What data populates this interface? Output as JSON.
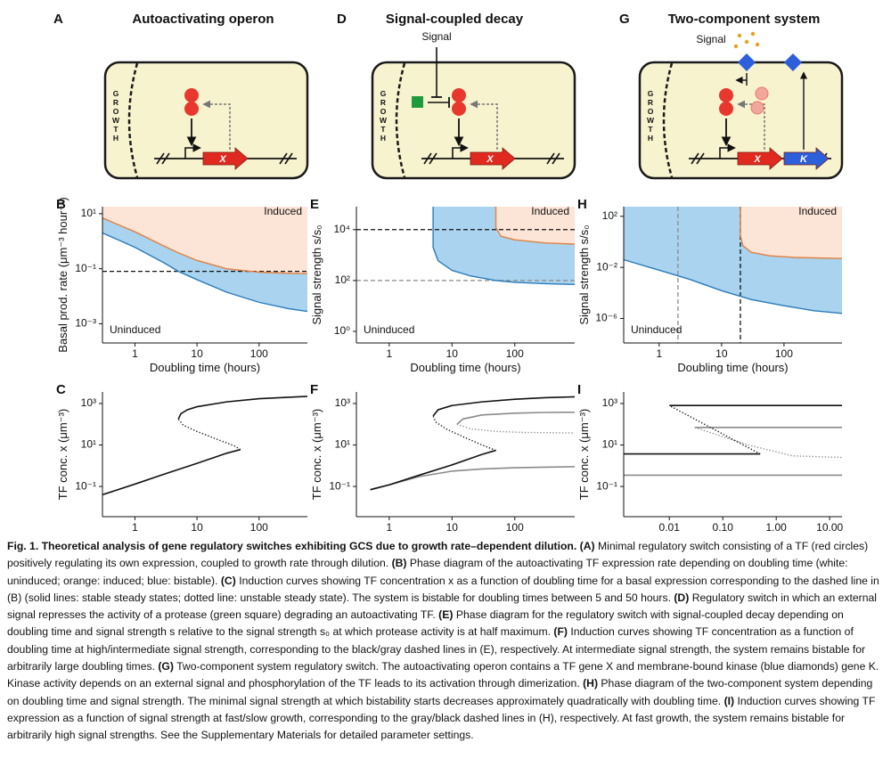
{
  "diagrams": [
    {
      "panel": "A",
      "title": "Autoactivating operon",
      "growth": "GROWTH",
      "genes": [
        "X"
      ]
    },
    {
      "panel": "D",
      "title": "Signal-coupled decay",
      "growth": "GROWTH",
      "signal": "Signal",
      "genes": [
        "X"
      ]
    },
    {
      "panel": "G",
      "title": "Two-component system",
      "growth": "GROWTH",
      "signal": "Signal",
      "genes": [
        "X",
        "K"
      ]
    }
  ],
  "chart_data": [
    {
      "panel": "B",
      "type": "line",
      "xscale": "log",
      "yscale": "log",
      "xlabel": "Doubling time (hours)",
      "ylabel": "Basal prod. rate (μm⁻³ hour⁻¹)",
      "xlim": [
        0.3,
        600
      ],
      "ylim": [
        0.0002,
        18
      ],
      "xticks": [
        1,
        10,
        100
      ],
      "yticks": [
        {
          "value": 10,
          "label": "10¹"
        },
        {
          "value": 0.1,
          "label": "10⁻¹"
        },
        {
          "value": 0.001,
          "label": "10⁻³"
        }
      ],
      "region_labels": [
        "Induced",
        "Uninduced"
      ],
      "hlines": [
        {
          "value": 0.08,
          "color": "#111111"
        }
      ],
      "series": [
        {
          "color": "#2b7bba",
          "fill": "#a9d3ef",
          "style": "solid",
          "x": [
            0.3,
            1,
            3,
            5,
            10,
            30,
            100,
            300,
            600
          ],
          "values": [
            2,
            0.6,
            0.16,
            0.08,
            0.04,
            0.014,
            0.006,
            0.0035,
            0.0028
          ]
        },
        {
          "color": "#e2803f",
          "fill": "#fce4d6",
          "style": "solid",
          "x": [
            0.3,
            1,
            3,
            5,
            10,
            30,
            100,
            300,
            600
          ],
          "values": [
            7,
            2.2,
            0.65,
            0.38,
            0.2,
            0.1,
            0.075,
            0.068,
            0.066
          ]
        }
      ]
    },
    {
      "panel": "C",
      "type": "line",
      "xscale": "log",
      "yscale": "log",
      "xlabel": "Doubling time (hours)",
      "ylabel": "TF conc. x (μm⁻³)",
      "xlim": [
        0.3,
        600
      ],
      "ylim": [
        0.0035,
        3600
      ],
      "xticks": [
        1,
        10,
        100
      ],
      "yticks": [
        {
          "value": 1000,
          "label": "10³"
        },
        {
          "value": 10,
          "label": "10¹"
        },
        {
          "value": 0.1,
          "label": "10⁻¹"
        }
      ],
      "series": [
        {
          "color": "#111111",
          "style": "solid",
          "x": [
            0.3,
            1,
            3,
            10,
            30,
            50
          ],
          "values": [
            0.04,
            0.13,
            0.4,
            1.3,
            4,
            6
          ]
        },
        {
          "color": "#111111",
          "style": "dotted",
          "x": [
            50,
            40,
            20,
            10,
            6,
            5
          ],
          "values": [
            6,
            9,
            20,
            45,
            90,
            180
          ]
        },
        {
          "color": "#111111",
          "style": "solid",
          "x": [
            5,
            5.5,
            7,
            10,
            30,
            100,
            300,
            600
          ],
          "values": [
            180,
            320,
            500,
            700,
            1200,
            1700,
            2000,
            2200
          ]
        }
      ]
    },
    {
      "panel": "E",
      "type": "line",
      "xscale": "log",
      "yscale": "log",
      "xlabel": "Doubling time (hours)",
      "ylabel": "Signal strength s/s₀",
      "xlim": [
        0.3,
        900
      ],
      "ylim": [
        0.35,
        80000
      ],
      "xticks": [
        1,
        10,
        100
      ],
      "yticks": [
        {
          "value": 10000,
          "label": "10⁴"
        },
        {
          "value": 100,
          "label": "10²"
        },
        {
          "value": 1,
          "label": "10⁰"
        }
      ],
      "region_labels": [
        "Induced",
        "Uninduced"
      ],
      "hlines": [
        {
          "value": 10000,
          "color": "#111111"
        },
        {
          "value": 100,
          "color": "#8a8a8a"
        }
      ],
      "series": [
        {
          "color": "#2b7bba",
          "fill": "#a9d3ef",
          "style": "solid",
          "x": [
            5,
            5,
            6,
            10,
            20,
            50,
            100,
            300,
            900
          ],
          "values": [
            80000,
            2000,
            600,
            250,
            150,
            100,
            85,
            75,
            70
          ]
        },
        {
          "color": "#e2803f",
          "fill": "#fce4d6",
          "style": "solid",
          "x": [
            50,
            50,
            60,
            100,
            300,
            900
          ],
          "values": [
            80000,
            12000,
            5500,
            4000,
            3000,
            2700
          ]
        }
      ]
    },
    {
      "panel": "F",
      "type": "line",
      "xscale": "log",
      "yscale": "log",
      "xlabel": "Doubling time (hours)",
      "ylabel": "TF conc. x (μm⁻³)",
      "xlim": [
        0.3,
        900
      ],
      "ylim": [
        0.0035,
        3600
      ],
      "xticks": [
        1,
        10,
        100
      ],
      "yticks": [
        {
          "value": 1000,
          "label": "10³"
        },
        {
          "value": 10,
          "label": "10¹"
        },
        {
          "value": 0.1,
          "label": "10⁻¹"
        }
      ],
      "series": [
        {
          "color": "#8a8a8a",
          "style": "solid",
          "x": [
            0.5,
            1,
            3,
            10,
            30,
            100,
            300,
            900
          ],
          "values": [
            0.07,
            0.12,
            0.3,
            0.55,
            0.7,
            0.8,
            0.85,
            0.9
          ]
        },
        {
          "color": "#8a8a8a",
          "style": "dotted",
          "x": [
            12,
            20,
            50,
            150,
            900
          ],
          "values": [
            100,
            60,
            45,
            40,
            38
          ]
        },
        {
          "color": "#8a8a8a",
          "style": "solid",
          "x": [
            12,
            15,
            30,
            100,
            300,
            900
          ],
          "values": [
            100,
            180,
            280,
            340,
            370,
            380
          ]
        },
        {
          "color": "#111111",
          "style": "solid",
          "x": [
            0.5,
            1,
            3,
            10,
            30,
            50
          ],
          "values": [
            0.07,
            0.12,
            0.35,
            1.1,
            3.5,
            5.5
          ]
        },
        {
          "color": "#111111",
          "style": "dotted",
          "x": [
            50,
            30,
            15,
            8,
            5.5,
            5
          ],
          "values": [
            5.5,
            10,
            25,
            60,
            130,
            250
          ]
        },
        {
          "color": "#111111",
          "style": "solid",
          "x": [
            5,
            6,
            10,
            30,
            100,
            300,
            900
          ],
          "values": [
            250,
            500,
            800,
            1200,
            1600,
            1900,
            2100
          ]
        }
      ]
    },
    {
      "panel": "H",
      "type": "line",
      "xscale": "log",
      "yscale": "log",
      "xlabel": "Doubling time (hours)",
      "ylabel": "Signal strength s/s₀",
      "xlim": [
        0.27,
        850
      ],
      "ylim": [
        1.2e-08,
        570
      ],
      "xticks": [
        1,
        10,
        100
      ],
      "yticks": [
        {
          "value": 100,
          "label": "10²"
        },
        {
          "value": 0.01,
          "label": "10⁻²"
        },
        {
          "value": 1e-06,
          "label": "10⁻⁶"
        }
      ],
      "region_labels": [
        "Induced",
        "Uninduced"
      ],
      "vlines": [
        {
          "value": 2,
          "color": "#8a8a8a"
        },
        {
          "value": 20,
          "color": "#111111"
        }
      ],
      "series": [
        {
          "color": "#2b7bba",
          "fill": "#a9d3ef",
          "style": "solid",
          "x": [
            0.27,
            1,
            3,
            10,
            30,
            100,
            300,
            850
          ],
          "values": [
            0.04,
            0.006,
            0.0012,
            0.00015,
            3e-05,
            1e-05,
            4e-06,
            2.5e-06
          ]
        },
        {
          "color": "#e2803f",
          "fill": "#fce4d6",
          "style": "solid",
          "x": [
            20,
            20,
            22,
            30,
            60,
            150,
            850
          ],
          "values": [
            570,
            3,
            0.5,
            0.15,
            0.08,
            0.06,
            0.05
          ]
        }
      ]
    },
    {
      "panel": "I",
      "type": "line",
      "xscale": "log",
      "yscale": "log",
      "xlabel": "Signal strength s/s₀",
      "ylabel": "TF conc. x (μm⁻³)",
      "xlim": [
        0.0014,
        17
      ],
      "ylim": [
        0.0035,
        3600
      ],
      "xticks": [
        0.01,
        {
          "value": 0.1,
          "label": "0.10"
        },
        {
          "value": 1,
          "label": "1.00"
        },
        {
          "value": 10,
          "label": "10.00"
        }
      ],
      "yticks": [
        {
          "value": 1000,
          "label": "10³"
        },
        {
          "value": 10,
          "label": "10¹"
        },
        {
          "value": 0.1,
          "label": "10⁻¹"
        }
      ],
      "series": [
        {
          "color": "#8a8a8a",
          "style": "solid",
          "x": [
            0.0014,
            17
          ],
          "values": [
            0.35,
            0.35
          ]
        },
        {
          "color": "#8a8a8a",
          "style": "solid",
          "x": [
            0.03,
            17
          ],
          "values": [
            70,
            70
          ]
        },
        {
          "color": "#8a8a8a",
          "style": "dotted",
          "x": [
            0.03,
            0.3,
            2,
            17
          ],
          "values": [
            70,
            10,
            3,
            2.5
          ]
        },
        {
          "color": "#111111",
          "style": "solid",
          "x": [
            0.01,
            17
          ],
          "values": [
            800,
            800
          ]
        },
        {
          "color": "#111111",
          "style": "solid",
          "x": [
            0.0014,
            0.5
          ],
          "values": [
            3.7,
            3.7
          ]
        },
        {
          "color": "#111111",
          "style": "dotted",
          "x": [
            0.5,
            0.07,
            0.01
          ],
          "values": [
            3.7,
            55,
            800
          ]
        }
      ]
    }
  ],
  "caption": {
    "title": "Fig. 1. Theoretical analysis of gene regulatory switches exhibiting GCS due to growth rate–dependent dilution.",
    "parts": [
      {
        "label": "(A)",
        "text": "Minimal regulatory switch consisting of a TF (red circles) positively regulating its own expression, coupled to growth rate through dilution."
      },
      {
        "label": "(B)",
        "text": "Phase diagram of the autoactivating TF expression rate depending on doubling time (white: uninduced; orange: induced; blue: bistable)."
      },
      {
        "label": "(C)",
        "text": "Induction curves showing TF concentration x as a function of doubling time for a basal expression corresponding to the dashed line in (B) (solid lines: stable steady states; dotted line: unstable steady state). The system is bistable for doubling times between 5 and 50 hours."
      },
      {
        "label": "(D)",
        "text": "Regulatory switch in which an external signal represses the activity of a protease (green square) degrading an autoactivating TF."
      },
      {
        "label": "(E)",
        "text": "Phase diagram for the regulatory switch with signal-coupled decay depending on doubling time and signal strength s relative to the signal strength s₀ at which protease activity is at half maximum."
      },
      {
        "label": "(F)",
        "text": "Induction curves showing TF concentration as a function of doubling time at high/intermediate signal strength, corresponding to the black/gray dashed lines in (E), respectively. At intermediate signal strength, the system remains bistable for arbitrarily large doubling times."
      },
      {
        "label": "(G)",
        "text": "Two-component system regulatory switch. The autoactivating operon contains a TF gene X and membrane-bound kinase (blue diamonds) gene K. Kinase activity depends on an external signal and phosphorylation of the TF leads to its activation through dimerization."
      },
      {
        "label": "(H)",
        "text": "Phase diagram of the two-component system depending on doubling time and signal strength. The minimal signal strength at which bistability starts decreases approximately quadratically with doubling time."
      },
      {
        "label": "(I)",
        "text": "Induction curves showing TF expression as a function of signal strength at fast/slow growth, corresponding to the gray/black dashed lines in (H), respectively. At fast growth, the system remains bistable for arbitrarily high signal strengths. See the Supplementary Materials for detailed parameter settings."
      }
    ]
  }
}
